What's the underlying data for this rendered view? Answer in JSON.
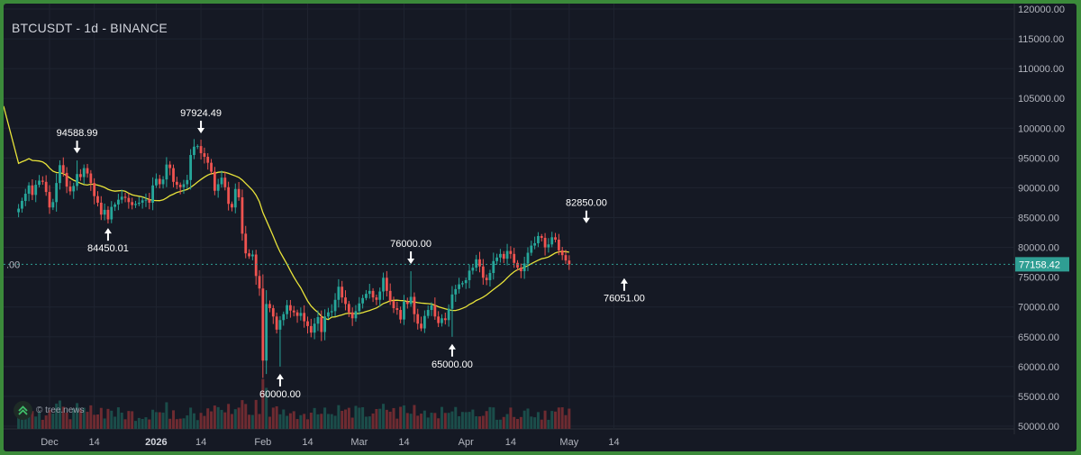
{
  "header": {
    "title": "BTCUSDT - 1d - BINANCE"
  },
  "watermark": {
    "text": "© tree.news"
  },
  "colors": {
    "background": "#151924",
    "up": "#26a69a",
    "down": "#ef5350",
    "up_volume": "#1b4d4a",
    "down_volume": "#6e2b31",
    "ma": "#e8e33a",
    "last_price": "#2f9e93",
    "frame": "#3b8a3a"
  },
  "chart_data": {
    "type": "candlestick",
    "title": "BTCUSDT - 1d - BINANCE",
    "xlabel": "",
    "ylabel": "",
    "ylim": [
      50000,
      120000
    ],
    "y_ticks": [
      "50000.00",
      "55000.00",
      "60000.00",
      "65000.00",
      "70000.00",
      "75000.00",
      "80000.00",
      "85000.00",
      "90000.00",
      "95000.00",
      "100000.00",
      "105000.00",
      "110000.00",
      "115000.00",
      "120000.00"
    ],
    "x_ticks": [
      {
        "label": "Dec",
        "date": "2025-12-01",
        "bold": false
      },
      {
        "label": "14",
        "date": "2025-12-14",
        "bold": false
      },
      {
        "label": "2026",
        "date": "2026-01-01",
        "bold": true
      },
      {
        "label": "14",
        "date": "2026-01-14",
        "bold": false
      },
      {
        "label": "Feb",
        "date": "2026-02-01",
        "bold": false
      },
      {
        "label": "14",
        "date": "2026-02-14",
        "bold": false
      },
      {
        "label": "Mar",
        "date": "2026-03-01",
        "bold": false
      },
      {
        "label": "14",
        "date": "2026-03-14",
        "bold": false
      },
      {
        "label": "Apr",
        "date": "2026-04-01",
        "bold": false
      },
      {
        "label": "14",
        "date": "2026-04-14",
        "bold": false
      },
      {
        "label": "May",
        "date": "2026-05-01",
        "bold": false
      },
      {
        "label": "14",
        "date": "2026-05-14",
        "bold": false
      }
    ],
    "start_date": "2025-11-22",
    "close": [
      86500,
      87800,
      89000,
      90400,
      88800,
      90500,
      91200,
      91000,
      89300,
      86700,
      87600,
      90800,
      93800,
      92500,
      90200,
      89400,
      90300,
      92300,
      91800,
      93300,
      92400,
      90800,
      88600,
      87500,
      85500,
      86300,
      84700,
      86800,
      87200,
      88000,
      88500,
      88300,
      87600,
      87100,
      87300,
      87500,
      87900,
      88000,
      87500,
      90400,
      91500,
      90600,
      91400,
      93900,
      93300,
      91000,
      90500,
      90100,
      90600,
      91300,
      95500,
      96900,
      97000,
      95800,
      95200,
      94200,
      92700,
      89500,
      90600,
      91700,
      90100,
      87300,
      86700,
      89800,
      88400,
      82300,
      79000,
      78500,
      78800,
      75200,
      73100,
      61000,
      70500,
      69800,
      68400,
      66200,
      67800,
      68800,
      70300,
      69400,
      69100,
      68500,
      69000,
      67600,
      66800,
      65700,
      67200,
      68300,
      65800,
      68400,
      69100,
      69300,
      71200,
      73400,
      71600,
      70500,
      69100,
      68100,
      69300,
      70600,
      71500,
      72200,
      72700,
      71600,
      71200,
      72600,
      74900,
      72700,
      71000,
      69800,
      69500,
      67900,
      70900,
      70500,
      71700,
      68800,
      67200,
      66400,
      68500,
      69500,
      70300,
      68400,
      67300,
      68100,
      67800,
      69700,
      72100,
      73000,
      73800,
      74000,
      74500,
      76100,
      76600,
      78000,
      76800,
      74900,
      74500,
      75700,
      77700,
      78300,
      78900,
      78100,
      79400,
      78900,
      77400,
      76600,
      76000,
      77300,
      79100,
      80300,
      80700,
      81900,
      81600,
      80000,
      80500,
      81700,
      81300,
      79500,
      78700,
      77800,
      77158
    ]
  },
  "annotations": [
    {
      "label": "94588.99",
      "date": "2025-12-09",
      "price": 94588.99,
      "dir": "high"
    },
    {
      "label": "84450.01",
      "date": "2025-12-18",
      "price": 84450.01,
      "dir": "low"
    },
    {
      "label": "97924.49",
      "date": "2026-01-14",
      "price": 97924.49,
      "dir": "high"
    },
    {
      "label": "60000.00",
      "date": "2026-02-06",
      "price": 60000.0,
      "dir": "low"
    },
    {
      "label": "76000.00",
      "date": "2026-03-16",
      "price": 76000.0,
      "dir": "high"
    },
    {
      "label": "65000.00",
      "date": "2026-03-28",
      "price": 65000.0,
      "dir": "low"
    },
    {
      "label": "82850.00",
      "date": "2026-05-06",
      "price": 82850.0,
      "dir": "high"
    },
    {
      "label": "76051.00",
      "date": "2026-05-17",
      "price": 76051.0,
      "dir": "low"
    }
  ],
  "last_price": {
    "label": "77158.42",
    "value": 77158.42,
    "left_label": ".00"
  }
}
